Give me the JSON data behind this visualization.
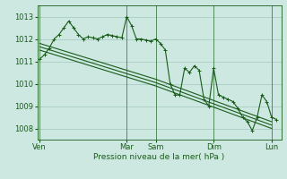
{
  "bg_color": "#cce8e0",
  "grid_color": "#aaccc4",
  "line_color": "#1a5c1a",
  "xlabel": "Pression niveau de la mer( hPa )",
  "ylim": [
    1007.5,
    1013.5
  ],
  "yticks": [
    1008,
    1009,
    1010,
    1011,
    1012,
    1013
  ],
  "x_day_labels": [
    "Ven",
    "Mar",
    "Sam",
    "Dim",
    "Lun"
  ],
  "x_day_positions": [
    0,
    36,
    48,
    72,
    96
  ],
  "series1_x": [
    0,
    2,
    4,
    6,
    8,
    10,
    12,
    14,
    16,
    18,
    20,
    22,
    24,
    26,
    28,
    30,
    32,
    34,
    36,
    38,
    40,
    42,
    44,
    46,
    48,
    50,
    52,
    54,
    56,
    58,
    60,
    62,
    64,
    66,
    68,
    70,
    72,
    74,
    76,
    78,
    80,
    82,
    84,
    86,
    88,
    90,
    92,
    94,
    96,
    98
  ],
  "series1_y": [
    1011.1,
    1011.3,
    1011.6,
    1012.0,
    1012.2,
    1012.5,
    1012.8,
    1012.5,
    1012.2,
    1012.0,
    1012.1,
    1012.05,
    1012.0,
    1012.1,
    1012.2,
    1012.15,
    1012.1,
    1012.05,
    1013.0,
    1012.6,
    1012.0,
    1012.0,
    1011.95,
    1011.9,
    1012.0,
    1011.8,
    1011.5,
    1010.0,
    1009.5,
    1009.5,
    1010.7,
    1010.5,
    1010.8,
    1010.6,
    1009.3,
    1009.0,
    1010.7,
    1009.5,
    1009.4,
    1009.3,
    1009.2,
    1008.9,
    1008.5,
    1008.3,
    1007.9,
    1008.5,
    1009.5,
    1009.2,
    1008.5,
    1008.4
  ],
  "series2_x": [
    0,
    48,
    96
  ],
  "series2_y": [
    1011.8,
    1010.2,
    1008.3
  ],
  "series3_x": [
    0,
    48,
    96
  ],
  "series3_y": [
    1011.65,
    1010.05,
    1008.15
  ],
  "series4_x": [
    0,
    48,
    96
  ],
  "series4_y": [
    1011.5,
    1009.9,
    1008.0
  ],
  "xlim": [
    -1,
    100
  ]
}
